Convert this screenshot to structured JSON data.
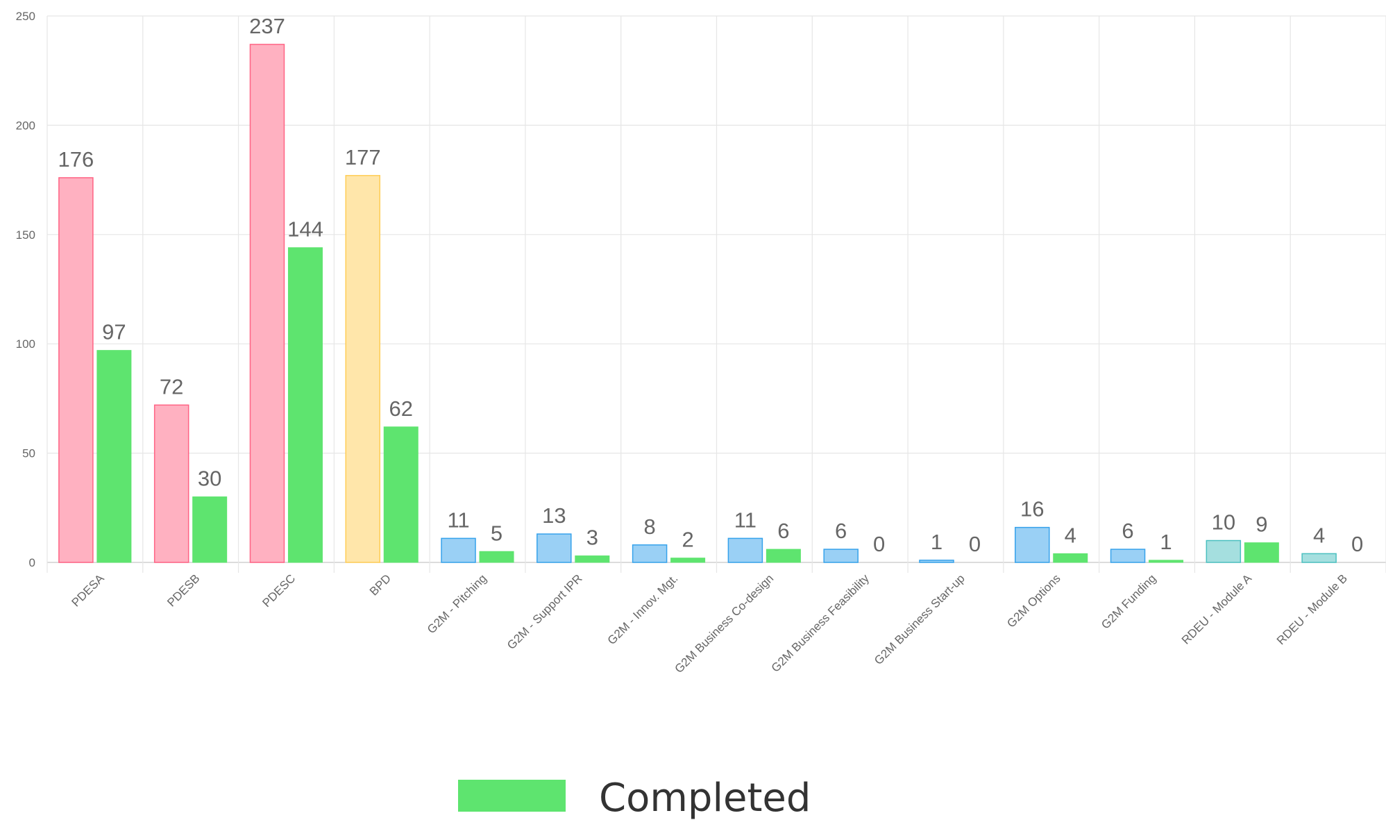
{
  "chart_data": {
    "type": "bar",
    "title": "",
    "xlabel": "",
    "ylabel": "",
    "ylim": [
      0,
      250
    ],
    "yticks": [
      0,
      50,
      100,
      150,
      200,
      250
    ],
    "grid": true,
    "legend_position": "bottom",
    "categories": [
      "PDESA",
      "PDESB",
      "PDESC",
      "BPD",
      "G2M - Pitching",
      "G2M - Support IPR",
      "G2M - Innov. Mgt.",
      "G2M Business Co-design",
      "G2M Business Feasibility",
      "G2M Business Start-up",
      "G2M Options",
      "G2M Funding",
      "RDEU - Module A",
      "RDEU - Module B"
    ],
    "series": [
      {
        "name": "",
        "values": [
          176,
          72,
          237,
          177,
          11,
          13,
          8,
          11,
          6,
          1,
          16,
          6,
          10,
          4
        ],
        "fill_colors": [
          "#ffb1c1",
          "#ffb1c1",
          "#ffb1c1",
          "#ffe6aa",
          "#9ad0f5",
          "#9ad0f5",
          "#9ad0f5",
          "#9ad0f5",
          "#9ad0f5",
          "#9ad0f5",
          "#9ad0f5",
          "#9ad0f5",
          "#a5dfdf",
          "#a5dfdf"
        ],
        "border_colors": [
          "#ff6384",
          "#ff6384",
          "#ff6384",
          "#ffcd56",
          "#36a2eb",
          "#36a2eb",
          "#36a2eb",
          "#36a2eb",
          "#36a2eb",
          "#36a2eb",
          "#36a2eb",
          "#36a2eb",
          "#4bc0c0",
          "#4bc0c0"
        ]
      },
      {
        "name": "Completed",
        "values": [
          97,
          30,
          144,
          62,
          5,
          3,
          2,
          6,
          0,
          0,
          4,
          1,
          9,
          0
        ],
        "color": "#5ee46f"
      }
    ]
  }
}
